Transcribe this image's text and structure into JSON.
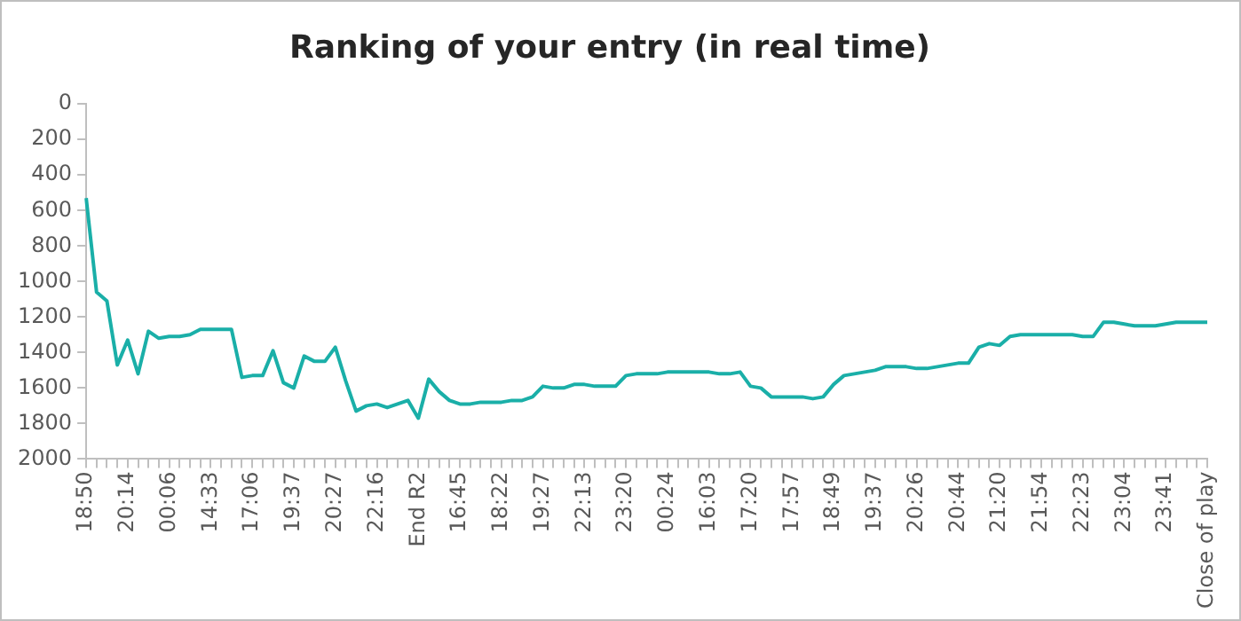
{
  "chart_data": {
    "type": "line",
    "title": "Ranking of your entry (in real time)",
    "categories": [
      "18:50",
      null,
      null,
      null,
      "20:14",
      null,
      null,
      null,
      "00:06",
      null,
      null,
      null,
      "14:33",
      null,
      null,
      null,
      "17:06",
      null,
      null,
      null,
      "19:37",
      null,
      null,
      null,
      "20:27",
      null,
      null,
      null,
      "22:16",
      null,
      null,
      null,
      "End R2",
      null,
      null,
      null,
      "16:45",
      null,
      null,
      null,
      "18:22",
      null,
      null,
      null,
      "19:27",
      null,
      null,
      null,
      "22:13",
      null,
      null,
      null,
      "23:20",
      null,
      null,
      null,
      "00:24",
      null,
      null,
      null,
      "16:03",
      null,
      null,
      null,
      "17:20",
      null,
      null,
      null,
      "17:57",
      null,
      null,
      null,
      "18:49",
      null,
      null,
      null,
      "19:37",
      null,
      null,
      null,
      "20:26",
      null,
      null,
      null,
      "20:44",
      null,
      null,
      null,
      "21:20",
      null,
      null,
      null,
      "21:54",
      null,
      null,
      null,
      "22:23",
      null,
      null,
      null,
      "23:04",
      null,
      null,
      null,
      "23:41",
      null,
      null,
      null,
      "Close of play"
    ],
    "series": [
      {
        "color": "#1aafa8",
        "values": [
          530,
          1060,
          1110,
          1470,
          1330,
          1520,
          1280,
          1320,
          1310,
          1310,
          1300,
          1270,
          1270,
          1270,
          1270,
          1540,
          1530,
          1530,
          1390,
          1570,
          1600,
          1420,
          1450,
          1450,
          1370,
          1560,
          1730,
          1700,
          1690,
          1710,
          1690,
          1670,
          1770,
          1550,
          1620,
          1670,
          1690,
          1690,
          1680,
          1680,
          1680,
          1670,
          1670,
          1650,
          1590,
          1600,
          1600,
          1580,
          1580,
          1590,
          1590,
          1590,
          1530,
          1520,
          1520,
          1520,
          1510,
          1510,
          1510,
          1510,
          1510,
          1520,
          1520,
          1510,
          1590,
          1600,
          1650,
          1650,
          1650,
          1650,
          1660,
          1650,
          1580,
          1530,
          1520,
          1510,
          1500,
          1480,
          1480,
          1480,
          1490,
          1490,
          1480,
          1470,
          1460,
          1460,
          1370,
          1350,
          1360,
          1310,
          1300,
          1300,
          1300,
          1300,
          1300,
          1300,
          1310,
          1310,
          1230,
          1230,
          1240,
          1250,
          1250,
          1250,
          1240,
          1230,
          1230,
          1230,
          1230
        ]
      }
    ],
    "ylim": [
      2000,
      0
    ],
    "yticks": [
      0,
      200,
      400,
      600,
      800,
      1000,
      1200,
      1400,
      1600,
      1800,
      2000
    ],
    "grid": false,
    "marker": "none"
  }
}
